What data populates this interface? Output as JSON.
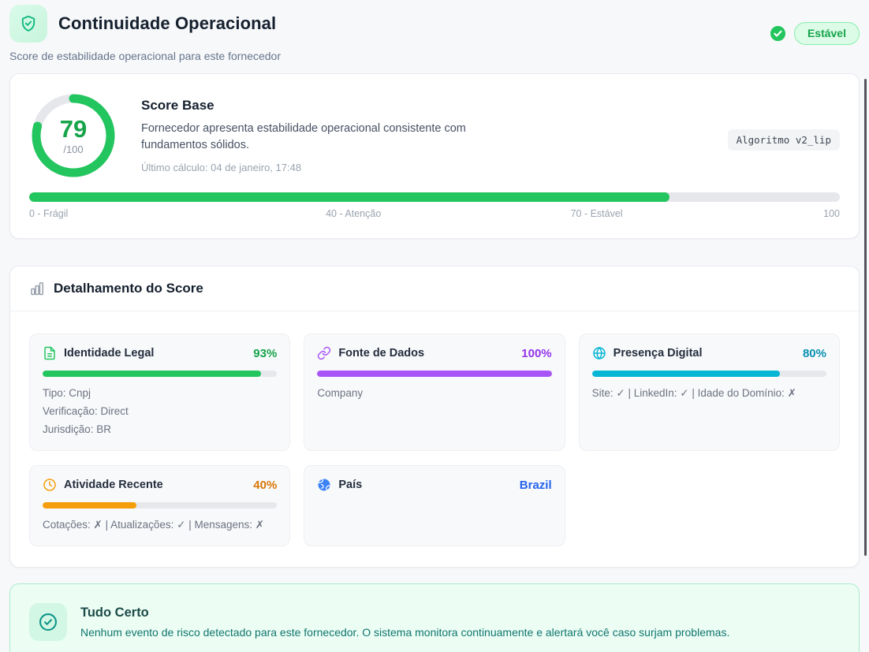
{
  "header": {
    "title": "Continuidade Operacional",
    "subtitle": "Score de estabilidade operacional para este fornecedor",
    "status_badge": "Estável"
  },
  "score_card": {
    "score": "79",
    "score_max": "/100",
    "title": "Score Base",
    "description": "Fornecedor apresenta estabilidade operacional consistente com fundamentos sólidos.",
    "last_calc": "Último cálculo: 04 de janeiro, 17:48",
    "algorithm_badge": "Algoritmo v2_lip",
    "progress": {
      "percent": 79,
      "color": "#22c55e"
    },
    "scale_labels": [
      {
        "label": "0 - Frágil",
        "position": 0
      },
      {
        "label": "40 - Atenção",
        "position": 40
      },
      {
        "label": "70 - Estável",
        "position": 70
      },
      {
        "label": "100",
        "position": 100
      }
    ]
  },
  "breakdown": {
    "title": "Detalhamento do Score",
    "cards": [
      {
        "icon": "file-text-icon",
        "label": "Identidade Legal",
        "value": "93%",
        "percent": 93,
        "color": "#22c55e",
        "icon_color": "#22c55e",
        "value_color": "#16a34a",
        "details": [
          "Tipo: Cnpj",
          "Verificação: Direct",
          "Jurisdição: BR"
        ]
      },
      {
        "icon": "link-icon",
        "label": "Fonte de Dados",
        "value": "100%",
        "percent": 100,
        "color": "#a855f7",
        "icon_color": "#a855f7",
        "value_color": "#9333ea",
        "details": [
          "Company"
        ]
      },
      {
        "icon": "globe-icon",
        "label": "Presença Digital",
        "value": "80%",
        "percent": 80,
        "color": "#06b6d4",
        "icon_color": "#06b6d4",
        "value_color": "#0891b2",
        "details": [
          "Site: ✓ | LinkedIn: ✓ | Idade do Domínio: ✗"
        ]
      },
      {
        "icon": "clock-icon",
        "label": "Atividade Recente",
        "value": "40%",
        "percent": 40,
        "color": "#f59e0b",
        "icon_color": "#f59e0b",
        "value_color": "#d97706",
        "details": [
          "Cotações: ✗ | Atualizações: ✓ | Mensagens: ✗"
        ]
      },
      {
        "icon": "globe-filled-icon",
        "label": "País",
        "value": "Brazil",
        "icon_color": "#3b82f6",
        "value_color": "#2563eb",
        "details": []
      }
    ]
  },
  "status_card": {
    "title": "Tudo Certo",
    "description": "Nenhum evento de risco detectado para este fornecedor. O sistema monitora continuamente e alertará você caso surjam problemas."
  }
}
